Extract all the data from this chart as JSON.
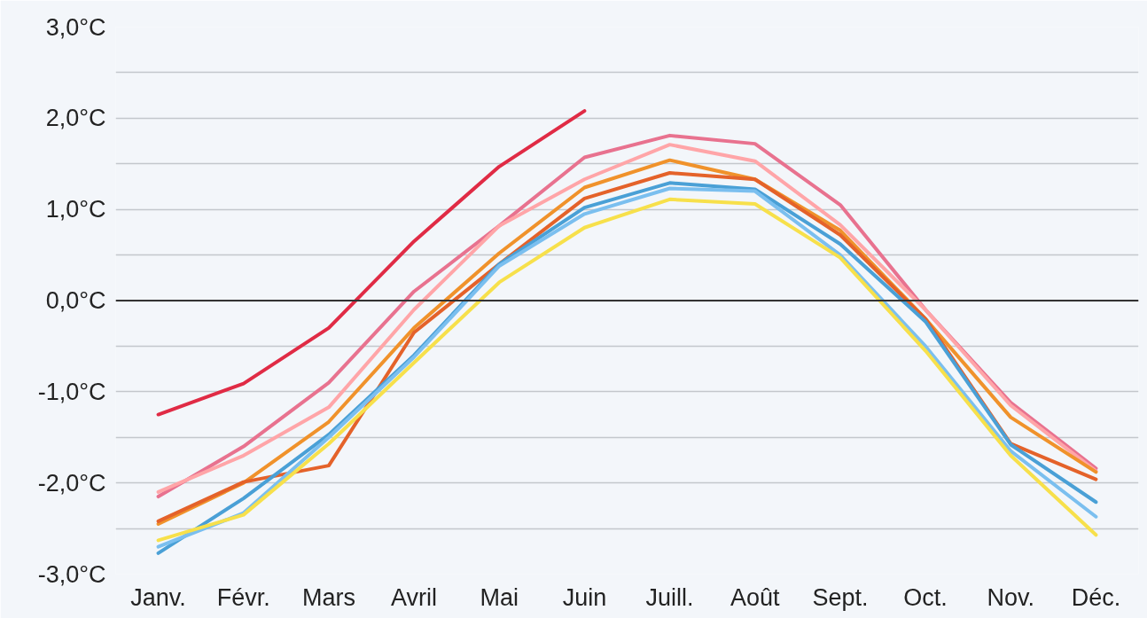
{
  "chart_data": {
    "type": "line",
    "categories": [
      "Janv.",
      "Févr.",
      "Mars",
      "Avril",
      "Mai",
      "Juin",
      "Juill.",
      "Août",
      "Sept.",
      "Oct.",
      "Nov.",
      "Déc."
    ],
    "series": [
      {
        "color": "#e02b45",
        "values": [
          -1.25,
          -0.91,
          -0.3,
          0.65,
          1.47,
          2.08,
          null,
          null,
          null,
          null,
          null,
          null
        ]
      },
      {
        "color": "#e8728f",
        "values": [
          -2.15,
          -1.6,
          -0.9,
          0.1,
          0.82,
          1.57,
          1.81,
          1.72,
          1.05,
          -0.1,
          -1.12,
          -1.84
        ]
      },
      {
        "color": "#ffa5a8",
        "values": [
          -2.1,
          -1.7,
          -1.17,
          -0.1,
          0.82,
          1.33,
          1.71,
          1.53,
          0.83,
          -0.1,
          -1.15,
          -1.87
        ]
      },
      {
        "color": "#f0922b",
        "values": [
          -2.45,
          -2.0,
          -1.33,
          -0.3,
          0.52,
          1.24,
          1.54,
          1.33,
          0.77,
          -0.2,
          -1.28,
          -1.88
        ]
      },
      {
        "color": "#e4622a",
        "values": [
          -2.42,
          -1.99,
          -1.81,
          -0.35,
          0.4,
          1.12,
          1.4,
          1.33,
          0.72,
          -0.2,
          -1.57,
          -1.96
        ]
      },
      {
        "color": "#4aa0d6",
        "values": [
          -2.77,
          -2.17,
          -1.47,
          -0.6,
          0.4,
          1.02,
          1.29,
          1.22,
          0.62,
          -0.23,
          -1.58,
          -2.21
        ]
      },
      {
        "color": "#7bbfef",
        "values": [
          -2.7,
          -2.33,
          -1.5,
          -0.62,
          0.38,
          0.95,
          1.23,
          1.2,
          0.5,
          -0.5,
          -1.65,
          -2.37
        ]
      },
      {
        "color": "#f7e04b",
        "values": [
          -2.63,
          -2.35,
          -1.57,
          -0.68,
          0.2,
          0.8,
          1.11,
          1.06,
          0.47,
          -0.55,
          -1.7,
          -2.57
        ]
      }
    ],
    "ylim": [
      -3,
      3
    ],
    "yticks": [
      {
        "value": -3,
        "label": "-3,0°C"
      },
      {
        "value": -2.5,
        "label": null
      },
      {
        "value": -2,
        "label": "-2,0°C"
      },
      {
        "value": -1.5,
        "label": null
      },
      {
        "value": -1,
        "label": "-1,0°C"
      },
      {
        "value": -0.5,
        "label": null
      },
      {
        "value": 0,
        "label": "0,0°C"
      },
      {
        "value": 0.5,
        "label": null
      },
      {
        "value": 1,
        "label": "1,0°C"
      },
      {
        "value": 1.5,
        "label": null
      },
      {
        "value": 2,
        "label": "2,0°C"
      },
      {
        "value": 2.5,
        "label": null
      },
      {
        "value": 3,
        "label": "3,0°C"
      }
    ],
    "ref_lines": [
      {
        "axis": "y",
        "value": 0,
        "color": "#333333"
      }
    ],
    "grid": "y",
    "line_style": "solid",
    "marker": "none"
  }
}
